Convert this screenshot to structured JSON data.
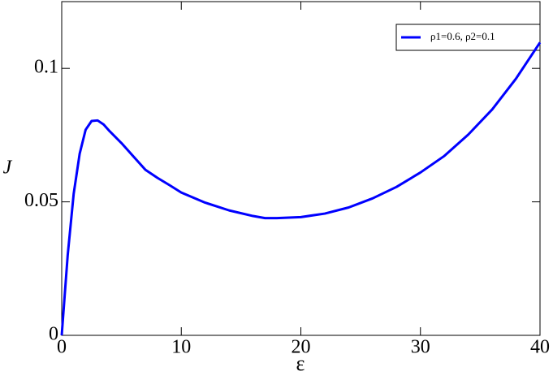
{
  "chart_data": {
    "type": "line",
    "xlabel": "ε",
    "ylabel": "J",
    "x": [
      0,
      0.25,
      0.5,
      1,
      1.5,
      2,
      2.5,
      3,
      3.5,
      4,
      5,
      6,
      7,
      8,
      9,
      10,
      12,
      14,
      16,
      17,
      18,
      20,
      22,
      24,
      26,
      28,
      30,
      32,
      34,
      36,
      38,
      40
    ],
    "series": [
      {
        "name": "ρ1=0.6,  ρ2=0.1",
        "color": "#0000ff",
        "values": [
          0,
          0.015,
          0.03,
          0.053,
          0.068,
          0.077,
          0.0803,
          0.0805,
          0.079,
          0.0765,
          0.072,
          0.067,
          0.062,
          0.059,
          0.0563,
          0.0535,
          0.0497,
          0.0468,
          0.0447,
          0.0439,
          0.0439,
          0.0443,
          0.0456,
          0.0479,
          0.0513,
          0.0556,
          0.061,
          0.0672,
          0.0752,
          0.0846,
          0.0962,
          0.1097
        ]
      }
    ],
    "xlim": [
      0,
      40
    ],
    "xticks": [
      0,
      10,
      20,
      30,
      40
    ],
    "ylim": [
      0,
      0.125
    ],
    "yticks": [
      0,
      0.05,
      {
        "value": 0.1,
        "label": "0.1"
      }
    ],
    "legend": "upper right"
  }
}
